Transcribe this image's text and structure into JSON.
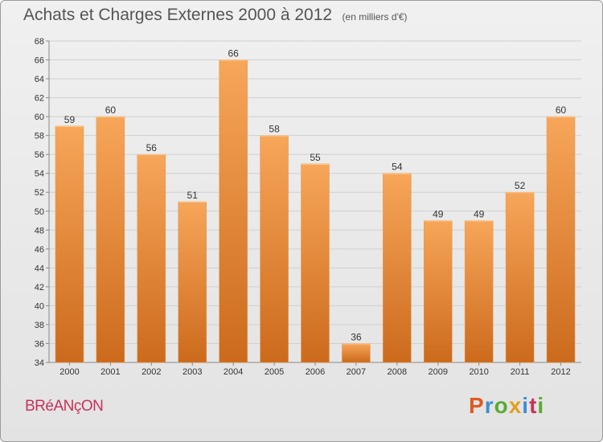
{
  "header": {
    "title": "Achats et Charges Externes 2000 à 2012",
    "subtitle": "(en milliers d'€)"
  },
  "footer": {
    "commune": "BRéANçON",
    "logo": {
      "text": "Proxiti",
      "colors": [
        "#e05a1e",
        "#3a8fd6",
        "#5aaa32",
        "#e0a020",
        "#3a8fd6",
        "#c8325a",
        "#5aaa32"
      ]
    }
  },
  "colors": {
    "bar_top": "#f7a65a",
    "bar_bottom": "#cc6a1c",
    "grid": "#d0d0d0",
    "axis_text": "#333333"
  },
  "chart_data": {
    "type": "bar",
    "title": "Achats et Charges Externes 2000 à 2012",
    "subtitle": "(en milliers d'€)",
    "xlabel": "",
    "ylabel": "",
    "categories": [
      "2000",
      "2001",
      "2002",
      "2003",
      "2004",
      "2005",
      "2006",
      "2007",
      "2008",
      "2009",
      "2010",
      "2011",
      "2012"
    ],
    "values": [
      59,
      60,
      56,
      51,
      66,
      58,
      55,
      36,
      54,
      49,
      49,
      52,
      60
    ],
    "ylim": [
      34,
      68
    ],
    "yticks": [
      34,
      36,
      38,
      40,
      42,
      44,
      46,
      48,
      50,
      52,
      54,
      56,
      58,
      60,
      62,
      64,
      66,
      68
    ],
    "grid": true,
    "legend": "none"
  }
}
